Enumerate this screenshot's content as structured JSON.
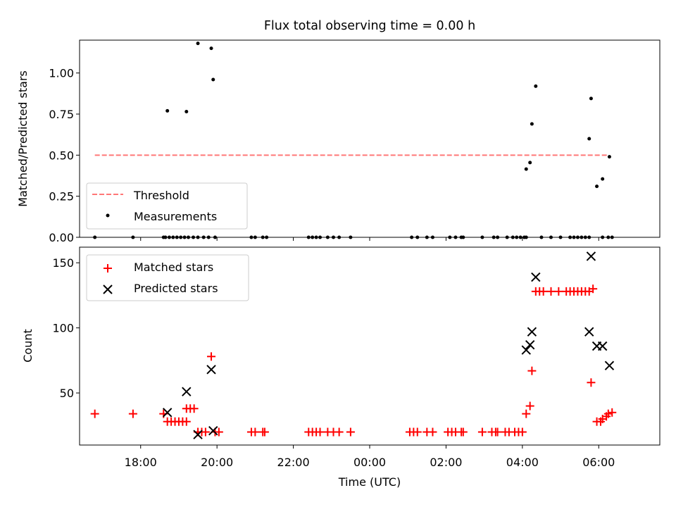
{
  "title": "Flux total observing time = 0.00 h",
  "chart_data": [
    {
      "type": "scatter",
      "title": "Flux total observing time = 0.00 h",
      "xlabel": "",
      "ylabel": "Matched/Predicted stars",
      "x_unit": "hours_utc_from_00",
      "xlim": [
        -7.6,
        7.6
      ],
      "ylim": [
        0,
        1.2
      ],
      "x_tick_values": [
        -6,
        -4,
        -2,
        0,
        2,
        4,
        6
      ],
      "y_ticks": [
        "0.00",
        "0.25",
        "0.50",
        "0.75",
        "1.00"
      ],
      "y_tick_values": [
        0,
        0.25,
        0.5,
        0.75,
        1.0
      ],
      "legend": {
        "position": "lower-left",
        "entries": [
          "Threshold",
          "Measurements"
        ]
      },
      "threshold": {
        "name": "Threshold",
        "value": 0.5,
        "x_start": -7.2,
        "x_end": 6.25,
        "color": "#ff7777"
      },
      "series": [
        {
          "name": "Measurements",
          "color": "#000000",
          "points": [
            [
              -7.2,
              0
            ],
            [
              -6.2,
              0
            ],
            [
              -5.4,
              0
            ],
            [
              -5.35,
              0
            ],
            [
              -5.25,
              0
            ],
            [
              -5.15,
              0
            ],
            [
              -5.05,
              0
            ],
            [
              -4.95,
              0
            ],
            [
              -4.85,
              0
            ],
            [
              -4.75,
              0
            ],
            [
              -4.62,
              0
            ],
            [
              -4.5,
              0
            ],
            [
              -4.35,
              0
            ],
            [
              -4.22,
              0
            ],
            [
              -4.05,
              0
            ],
            [
              -3.1,
              0
            ],
            [
              -3.0,
              0
            ],
            [
              -2.8,
              0
            ],
            [
              -2.7,
              0
            ],
            [
              -1.6,
              0
            ],
            [
              -1.5,
              0
            ],
            [
              -1.4,
              0
            ],
            [
              -1.3,
              0
            ],
            [
              -1.1,
              0
            ],
            [
              -0.95,
              0
            ],
            [
              -0.8,
              0
            ],
            [
              -0.5,
              0
            ],
            [
              1.1,
              0
            ],
            [
              1.25,
              0
            ],
            [
              1.5,
              0
            ],
            [
              1.65,
              0
            ],
            [
              2.1,
              0
            ],
            [
              2.25,
              0
            ],
            [
              2.4,
              0
            ],
            [
              2.45,
              0
            ],
            [
              2.95,
              0
            ],
            [
              3.25,
              0
            ],
            [
              3.35,
              0
            ],
            [
              3.6,
              0
            ],
            [
              3.75,
              0
            ],
            [
              3.85,
              0
            ],
            [
              3.95,
              0
            ],
            [
              4.05,
              0
            ],
            [
              4.1,
              0
            ],
            [
              4.5,
              0
            ],
            [
              4.75,
              0
            ],
            [
              5.0,
              0
            ],
            [
              5.25,
              0
            ],
            [
              5.35,
              0
            ],
            [
              5.45,
              0
            ],
            [
              5.55,
              0
            ],
            [
              5.65,
              0
            ],
            [
              5.75,
              0
            ],
            [
              6.1,
              0
            ],
            [
              6.25,
              0
            ],
            [
              6.35,
              0
            ],
            [
              -5.3,
              0.77
            ],
            [
              -4.8,
              0.765
            ],
            [
              -4.5,
              1.18
            ],
            [
              -4.15,
              1.15
            ],
            [
              -4.1,
              0.96
            ],
            [
              4.1,
              0.415
            ],
            [
              4.2,
              0.455
            ],
            [
              4.25,
              0.69
            ],
            [
              4.35,
              0.92
            ],
            [
              5.75,
              0.6
            ],
            [
              5.8,
              0.845
            ],
            [
              5.95,
              0.31
            ],
            [
              6.1,
              0.355
            ],
            [
              6.28,
              0.49
            ]
          ]
        }
      ]
    },
    {
      "type": "scatter",
      "title": "",
      "xlabel": "Time (UTC)",
      "ylabel": "Count",
      "x_unit": "hours_utc_from_00",
      "xlim": [
        -7.6,
        7.6
      ],
      "ylim": [
        10,
        162
      ],
      "x_ticks": [
        "18:00",
        "20:00",
        "22:00",
        "00:00",
        "02:00",
        "04:00",
        "06:00"
      ],
      "x_tick_values": [
        -6,
        -4,
        -2,
        0,
        2,
        4,
        6
      ],
      "y_ticks": [
        "50",
        "100",
        "150"
      ],
      "y_tick_values": [
        50,
        100,
        150
      ],
      "legend": {
        "position": "top-left",
        "entries": [
          "Matched stars",
          "Predicted stars"
        ]
      },
      "series": [
        {
          "name": "Matched stars",
          "color": "#ff0000",
          "points": [
            [
              -7.2,
              34
            ],
            [
              -6.2,
              34
            ],
            [
              -5.4,
              34
            ],
            [
              -5.3,
              28
            ],
            [
              -5.2,
              28
            ],
            [
              -5.1,
              28
            ],
            [
              -5.0,
              28
            ],
            [
              -4.9,
              28
            ],
            [
              -4.8,
              28
            ],
            [
              -4.8,
              38
            ],
            [
              -4.7,
              38
            ],
            [
              -4.6,
              38
            ],
            [
              -4.5,
              20
            ],
            [
              -4.4,
              20
            ],
            [
              -4.3,
              20
            ],
            [
              -4.15,
              78
            ],
            [
              -4.05,
              20
            ],
            [
              -3.95,
              20
            ],
            [
              -3.1,
              20
            ],
            [
              -3.0,
              20
            ],
            [
              -2.8,
              20
            ],
            [
              -2.75,
              20
            ],
            [
              -1.6,
              20
            ],
            [
              -1.5,
              20
            ],
            [
              -1.4,
              20
            ],
            [
              -1.3,
              20
            ],
            [
              -1.1,
              20
            ],
            [
              -0.95,
              20
            ],
            [
              -0.8,
              20
            ],
            [
              -0.5,
              20
            ],
            [
              1.05,
              20
            ],
            [
              1.15,
              20
            ],
            [
              1.25,
              20
            ],
            [
              1.5,
              20
            ],
            [
              1.65,
              20
            ],
            [
              2.05,
              20
            ],
            [
              2.15,
              20
            ],
            [
              2.25,
              20
            ],
            [
              2.4,
              20
            ],
            [
              2.45,
              20
            ],
            [
              2.95,
              20
            ],
            [
              3.2,
              20
            ],
            [
              3.3,
              20
            ],
            [
              3.35,
              20
            ],
            [
              3.55,
              20
            ],
            [
              3.65,
              20
            ],
            [
              3.8,
              20
            ],
            [
              3.9,
              20
            ],
            [
              4.0,
              20
            ],
            [
              4.1,
              34
            ],
            [
              4.2,
              40
            ],
            [
              4.25,
              67
            ],
            [
              4.35,
              128
            ],
            [
              4.45,
              128
            ],
            [
              4.55,
              128
            ],
            [
              4.75,
              128
            ],
            [
              4.95,
              128
            ],
            [
              5.15,
              128
            ],
            [
              5.25,
              128
            ],
            [
              5.35,
              128
            ],
            [
              5.45,
              128
            ],
            [
              5.55,
              128
            ],
            [
              5.65,
              128
            ],
            [
              5.75,
              128
            ],
            [
              5.85,
              130
            ],
            [
              5.8,
              58
            ],
            [
              5.95,
              28
            ],
            [
              6.05,
              28
            ],
            [
              6.1,
              30
            ],
            [
              6.2,
              32
            ],
            [
              6.25,
              34
            ],
            [
              6.35,
              35
            ]
          ]
        },
        {
          "name": "Predicted stars",
          "color": "#000000",
          "points": [
            [
              -5.3,
              35
            ],
            [
              -4.8,
              51
            ],
            [
              -4.5,
              18
            ],
            [
              -4.15,
              68
            ],
            [
              -4.1,
              21
            ],
            [
              4.1,
              83
            ],
            [
              4.2,
              87
            ],
            [
              4.25,
              97
            ],
            [
              4.35,
              139
            ],
            [
              5.75,
              97
            ],
            [
              5.8,
              155
            ],
            [
              5.95,
              86
            ],
            [
              6.1,
              86
            ],
            [
              6.28,
              71
            ]
          ]
        }
      ]
    }
  ]
}
